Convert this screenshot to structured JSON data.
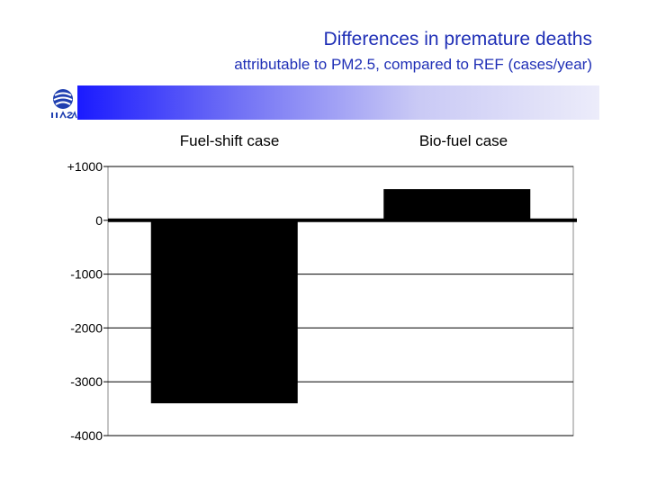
{
  "header": {
    "title": "Differences in premature deaths",
    "subtitle": "attributable to PM2.5, compared to REF (cases/year)",
    "logo_icon": "iiasa-logo-icon"
  },
  "colors": {
    "title_text": "#1f2fb6",
    "banner_start": "#1a1aff",
    "banner_end": "#ececfa",
    "bars": "#000000"
  },
  "chart_data": {
    "type": "bar",
    "title": "Differences in premature deaths",
    "subtitle": "attributable to PM2.5, compared to REF (cases/year)",
    "categories": [
      "Fuel-shift case",
      "Bio-fuel case"
    ],
    "values": [
      -3400,
      580
    ],
    "ylim": [
      -4000,
      1000
    ],
    "yticks": [
      1000,
      0,
      -1000,
      -2000,
      -3000,
      -4000
    ],
    "ytick_labels": [
      "+1000",
      "0",
      "-1000",
      "-2000",
      "-3000",
      "-4000"
    ],
    "category_label_position": "top",
    "grid": true,
    "xlabel": "",
    "ylabel": ""
  }
}
